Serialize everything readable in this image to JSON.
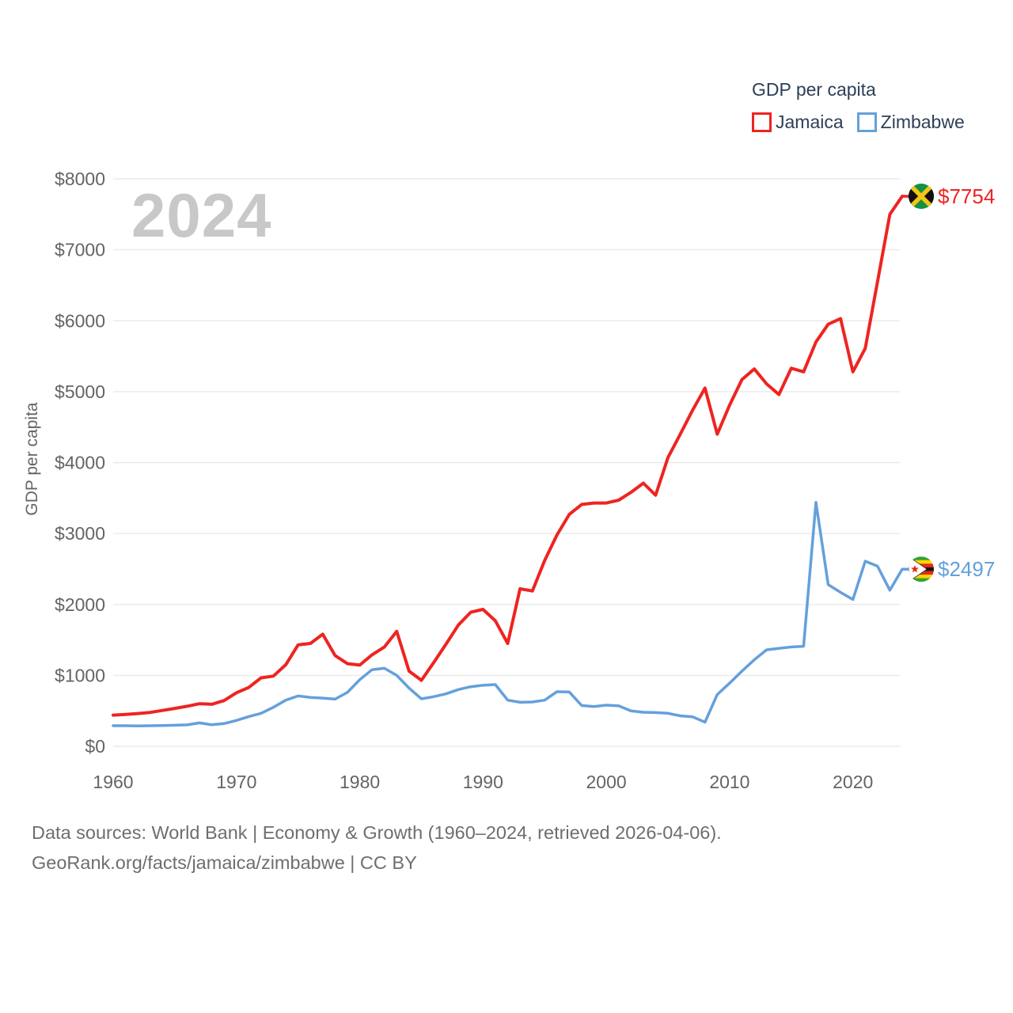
{
  "legend": {
    "title": "GDP per capita",
    "items": [
      {
        "label": "Jamaica",
        "color": "#ee2421"
      },
      {
        "label": "Zimbabwe",
        "color": "#64a0dc"
      }
    ]
  },
  "watermark": "2024",
  "footer": {
    "line1": "Data sources: World Bank | Economy & Growth (1960–2024, retrieved 2026-04-06).",
    "line2": "GeoRank.org/facts/jamaica/zimbabwe | CC BY"
  },
  "colors": {
    "jamaica": "#ee2421",
    "zimbabwe": "#64a0dc",
    "tick_text": "#646464",
    "legend_text": "#2d3f55",
    "footer_text": "#6e6e6e",
    "gridline": "#eaeaea",
    "watermark": "#c8c8c8"
  },
  "chart_data": {
    "type": "line",
    "title": "GDP per capita",
    "xlabel": "",
    "ylabel": "GDP per capita",
    "xlim": [
      1960,
      2024
    ],
    "ylim": [
      0,
      8000
    ],
    "grid": "horizontal",
    "legend_position": "top-right",
    "x_ticks": [
      1960,
      1970,
      1980,
      1990,
      2000,
      2010,
      2020
    ],
    "y_ticks": [
      0,
      1000,
      2000,
      3000,
      4000,
      5000,
      6000,
      7000,
      8000
    ],
    "y_tick_labels": [
      "$0",
      "$1000",
      "$2000",
      "$3000",
      "$4000",
      "$5000",
      "$6000",
      "$7000",
      "$8000"
    ],
    "x": [
      1960,
      1961,
      1962,
      1963,
      1964,
      1965,
      1966,
      1967,
      1968,
      1969,
      1970,
      1971,
      1972,
      1973,
      1974,
      1975,
      1976,
      1977,
      1978,
      1979,
      1980,
      1981,
      1982,
      1983,
      1984,
      1985,
      1986,
      1987,
      1988,
      1989,
      1990,
      1991,
      1992,
      1993,
      1994,
      1995,
      1996,
      1997,
      1998,
      1999,
      2000,
      2001,
      2002,
      2003,
      2004,
      2005,
      2006,
      2007,
      2008,
      2009,
      2010,
      2011,
      2012,
      2013,
      2014,
      2015,
      2016,
      2017,
      2018,
      2019,
      2020,
      2021,
      2022,
      2023,
      2024
    ],
    "series": [
      {
        "name": "Jamaica",
        "color": "#ee2421",
        "end_label": "$7754",
        "end_value": 7754,
        "flag": "jamaica",
        "values": [
          440,
          450,
          462,
          478,
          505,
          535,
          565,
          600,
          592,
          645,
          755,
          830,
          965,
          990,
          1150,
          1430,
          1450,
          1580,
          1280,
          1165,
          1145,
          1290,
          1400,
          1620,
          1060,
          930,
          1180,
          1440,
          1710,
          1890,
          1930,
          1770,
          1450,
          2220,
          2190,
          2620,
          2980,
          3270,
          3410,
          3430,
          3430,
          3470,
          3580,
          3710,
          3540,
          4070,
          4400,
          4740,
          5050,
          4400,
          4810,
          5170,
          5320,
          5110,
          4960,
          5330,
          5280,
          5700,
          5950,
          6030,
          5280,
          5610,
          6550,
          7500,
          7754
        ]
      },
      {
        "name": "Zimbabwe",
        "color": "#64a0dc",
        "end_label": "$2497",
        "end_value": 2497,
        "flag": "zimbabwe",
        "values": [
          290,
          290,
          287,
          290,
          293,
          297,
          302,
          330,
          303,
          320,
          365,
          420,
          465,
          550,
          650,
          710,
          690,
          680,
          665,
          760,
          940,
          1080,
          1100,
          1000,
          820,
          670,
          700,
          740,
          800,
          840,
          860,
          870,
          650,
          620,
          625,
          650,
          770,
          765,
          575,
          560,
          580,
          570,
          500,
          480,
          475,
          465,
          430,
          415,
          340,
          730,
          890,
          1060,
          1220,
          1360,
          1380,
          1400,
          1410,
          3440,
          2280,
          2170,
          2070,
          2610,
          2540,
          2200,
          2497
        ]
      }
    ]
  }
}
